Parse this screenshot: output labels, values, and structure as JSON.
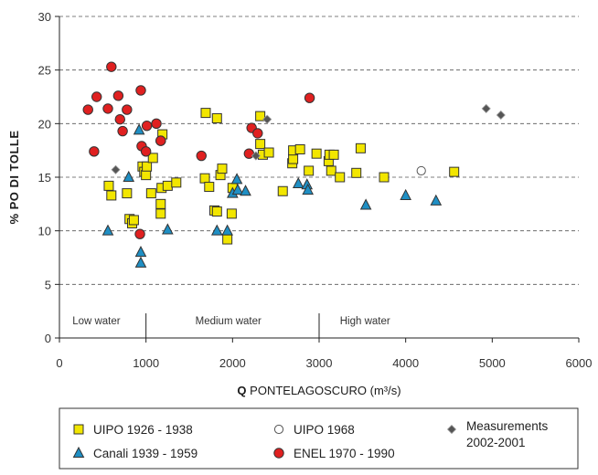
{
  "chart_data": {
    "type": "scatter",
    "title": "",
    "ylabel": "% PO DI TOLLE",
    "xlabel_bold": "Q",
    "xlabel_rest": " PONTELAGOSCURO (m³/s)",
    "xlim": [
      0,
      6000
    ],
    "ylim": [
      0,
      30
    ],
    "xticks": [
      0,
      1000,
      2000,
      3000,
      4000,
      5000,
      6000
    ],
    "yticks": [
      0,
      5,
      10,
      15,
      20,
      25,
      30
    ],
    "grid": "horizontal dashed",
    "regions": [
      {
        "label": "Low water",
        "from": 0,
        "to": 1000
      },
      {
        "label": "Medium water",
        "from": 1000,
        "to": 3000
      },
      {
        "label": "High water",
        "from": 3000,
        "to": 6000
      }
    ],
    "region_boundaries": [
      1000,
      3000
    ],
    "legend_position": "bottom",
    "series": [
      {
        "name": "UIPO 1926 - 1938",
        "marker": "square",
        "color": "#f2e600",
        "points": [
          [
            570,
            14.2
          ],
          [
            600,
            13.3
          ],
          [
            780,
            13.5
          ],
          [
            810,
            11.1
          ],
          [
            840,
            10.7
          ],
          [
            860,
            11
          ],
          [
            960,
            16
          ],
          [
            980,
            15.5
          ],
          [
            1000,
            15.2
          ],
          [
            1010,
            16
          ],
          [
            1060,
            13.5
          ],
          [
            1080,
            16.8
          ],
          [
            1170,
            12.5
          ],
          [
            1170,
            11.6
          ],
          [
            1180,
            14
          ],
          [
            1190,
            19
          ],
          [
            1250,
            14.2
          ],
          [
            1350,
            14.5
          ],
          [
            1680,
            14.9
          ],
          [
            1690,
            21
          ],
          [
            1730,
            14.1
          ],
          [
            1790,
            11.9
          ],
          [
            1820,
            11.8
          ],
          [
            1820,
            20.5
          ],
          [
            1860,
            15.2
          ],
          [
            1880,
            15.8
          ],
          [
            1940,
            9.2
          ],
          [
            1990,
            11.6
          ],
          [
            2000,
            14
          ],
          [
            2320,
            20.7
          ],
          [
            2320,
            18.1
          ],
          [
            2350,
            17.1
          ],
          [
            2420,
            17.3
          ],
          [
            2580,
            13.7
          ],
          [
            2690,
            16.3
          ],
          [
            2700,
            16.7
          ],
          [
            2700,
            17.5
          ],
          [
            2780,
            17.6
          ],
          [
            2880,
            15.6
          ],
          [
            2970,
            17.2
          ],
          [
            3110,
            16.5
          ],
          [
            3120,
            17.1
          ],
          [
            3140,
            15.6
          ],
          [
            3170,
            17.1
          ],
          [
            3240,
            15
          ],
          [
            3430,
            15.4
          ],
          [
            3480,
            17.7
          ],
          [
            3750,
            15
          ],
          [
            4560,
            15.5
          ]
        ]
      },
      {
        "name": "Canali 1939 - 1959",
        "marker": "triangle",
        "color": "#1f8fc4",
        "points": [
          [
            560,
            10
          ],
          [
            800,
            15
          ],
          [
            920,
            19.4
          ],
          [
            940,
            8
          ],
          [
            940,
            7
          ],
          [
            1250,
            10.1
          ],
          [
            1820,
            10
          ],
          [
            1940,
            10
          ],
          [
            2000,
            13.5
          ],
          [
            2050,
            14.8
          ],
          [
            2060,
            13.8
          ],
          [
            2150,
            13.7
          ],
          [
            2760,
            14.4
          ],
          [
            2860,
            14.3
          ],
          [
            2870,
            13.8
          ],
          [
            3540,
            12.4
          ],
          [
            4000,
            13.3
          ],
          [
            4350,
            12.8
          ]
        ]
      },
      {
        "name": "UIPO 1968",
        "marker": "circle-open",
        "color": "#ffffff",
        "points": [
          [
            4180,
            15.6
          ]
        ]
      },
      {
        "name": "ENEL 1970 - 1990",
        "marker": "circle",
        "color": "#e02020",
        "points": [
          [
            330,
            21.3
          ],
          [
            400,
            17.4
          ],
          [
            430,
            22.5
          ],
          [
            560,
            21.4
          ],
          [
            600,
            25.3
          ],
          [
            680,
            22.6
          ],
          [
            700,
            20.4
          ],
          [
            730,
            19.3
          ],
          [
            780,
            21.3
          ],
          [
            930,
            9.7
          ],
          [
            940,
            23.1
          ],
          [
            950,
            17.9
          ],
          [
            1000,
            17.4
          ],
          [
            1010,
            19.8
          ],
          [
            1120,
            20
          ],
          [
            1170,
            18.4
          ],
          [
            1170,
            18.4
          ],
          [
            1640,
            17
          ],
          [
            2190,
            17.2
          ],
          [
            2220,
            19.6
          ],
          [
            2290,
            19.1
          ],
          [
            2890,
            22.4
          ]
        ]
      },
      {
        "name": "Measurements 2002-2001",
        "marker": "diamond",
        "color": "#555555",
        "points": [
          [
            650,
            15.7
          ],
          [
            2270,
            17
          ],
          [
            2400,
            20.4
          ],
          [
            4930,
            21.4
          ],
          [
            5100,
            20.8
          ]
        ]
      }
    ]
  }
}
